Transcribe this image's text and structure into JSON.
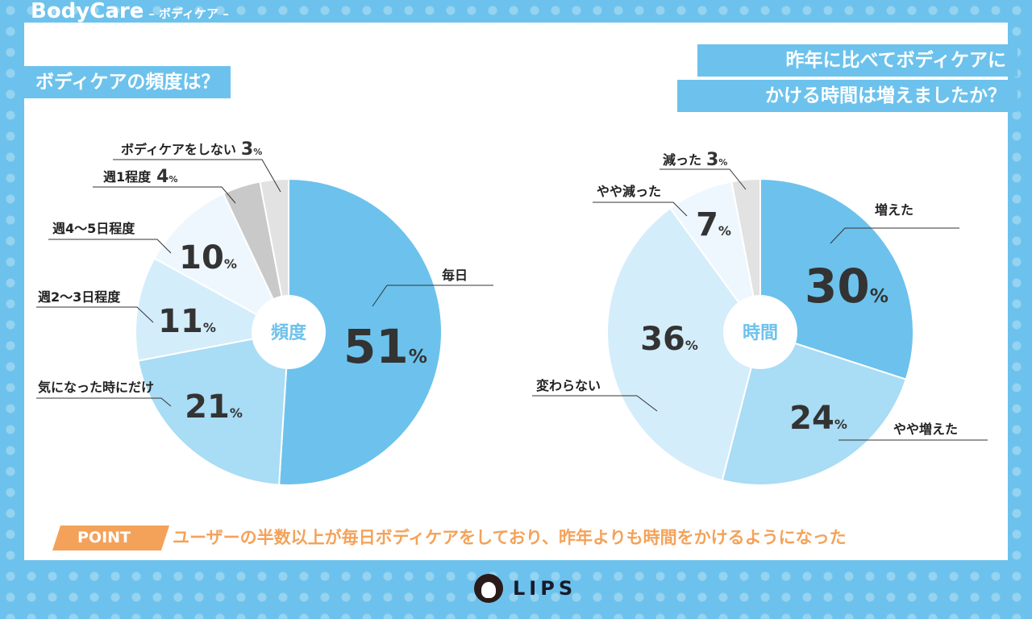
{
  "header": {
    "brand": "BodyCare",
    "subtitle": "– ボディケア –"
  },
  "left": {
    "question": "ボディケアの頻度は？"
  },
  "right": {
    "question_line1": "昨年に比べてボディケアに",
    "question_line2": "かける時間は増えましたか？"
  },
  "point": {
    "tag": "POINT",
    "message": "ユーザーの半数以上が毎日ボディケアをしており、昨年よりも時間をかけるようになった"
  },
  "logo": {
    "text": "LIPS"
  },
  "unit": "%",
  "chart_data": [
    {
      "type": "pie",
      "title": "ボディケアの頻度は？",
      "center_label": "頻度",
      "categories": [
        "毎日",
        "気になった時にだけ",
        "週2〜3日程度",
        "週4〜5日程度",
        "週1程度",
        "ボディケアをしない"
      ],
      "values": [
        51,
        21,
        11,
        10,
        4,
        3
      ],
      "colors": [
        "#6cc2ec",
        "#a9dcf5",
        "#d4edfa",
        "#eef7fd",
        "#c9c9c9",
        "#e2e2e2"
      ]
    },
    {
      "type": "pie",
      "title": "昨年に比べてボディケアにかける時間は増えましたか？",
      "center_label": "時間",
      "categories": [
        "増えた",
        "やや増えた",
        "変わらない",
        "やや減った",
        "減った"
      ],
      "values": [
        30,
        24,
        36,
        7,
        3
      ],
      "colors": [
        "#6cc2ec",
        "#a9dcf5",
        "#d4edfa",
        "#eef7fd",
        "#e2e2e2"
      ]
    }
  ]
}
